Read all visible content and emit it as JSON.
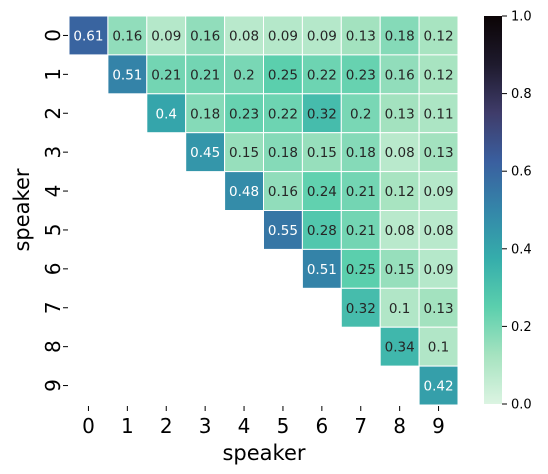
{
  "chart_data": {
    "type": "heatmap",
    "title": "",
    "xlabel": "speaker",
    "ylabel": "speaker",
    "x_categories": [
      "0",
      "1",
      "2",
      "3",
      "4",
      "5",
      "6",
      "7",
      "8",
      "9"
    ],
    "y_categories": [
      "0",
      "1",
      "2",
      "3",
      "4",
      "5",
      "6",
      "7",
      "8",
      "9"
    ],
    "values": [
      [
        0.61,
        0.16,
        0.09,
        0.16,
        0.08,
        0.09,
        0.09,
        0.13,
        0.18,
        0.12
      ],
      [
        null,
        0.51,
        0.21,
        0.21,
        0.2,
        0.25,
        0.22,
        0.23,
        0.16,
        0.12
      ],
      [
        null,
        null,
        0.4,
        0.18,
        0.23,
        0.22,
        0.32,
        0.2,
        0.13,
        0.11
      ],
      [
        null,
        null,
        null,
        0.45,
        0.15,
        0.18,
        0.15,
        0.18,
        0.08,
        0.13
      ],
      [
        null,
        null,
        null,
        null,
        0.48,
        0.16,
        0.24,
        0.21,
        0.12,
        0.09
      ],
      [
        null,
        null,
        null,
        null,
        null,
        0.55,
        0.28,
        0.21,
        0.08,
        0.08
      ],
      [
        null,
        null,
        null,
        null,
        null,
        null,
        0.51,
        0.25,
        0.15,
        0.09
      ],
      [
        null,
        null,
        null,
        null,
        null,
        null,
        null,
        0.32,
        0.1,
        0.13
      ],
      [
        null,
        null,
        null,
        null,
        null,
        null,
        null,
        null,
        0.34,
        0.1
      ],
      [
        null,
        null,
        null,
        null,
        null,
        null,
        null,
        null,
        null,
        0.42
      ]
    ],
    "value_labels": [
      [
        "0.61",
        "0.16",
        "0.09",
        "0.16",
        "0.08",
        "0.09",
        "0.09",
        "0.13",
        "0.18",
        "0.12"
      ],
      [
        null,
        "0.51",
        "0.21",
        "0.21",
        "0.2",
        "0.25",
        "0.22",
        "0.23",
        "0.16",
        "0.12"
      ],
      [
        null,
        null,
        "0.4",
        "0.18",
        "0.23",
        "0.22",
        "0.32",
        "0.2",
        "0.13",
        "0.11"
      ],
      [
        null,
        null,
        null,
        "0.45",
        "0.15",
        "0.18",
        "0.15",
        "0.18",
        "0.08",
        "0.13"
      ],
      [
        null,
        null,
        null,
        null,
        "0.48",
        "0.16",
        "0.24",
        "0.21",
        "0.12",
        "0.09"
      ],
      [
        null,
        null,
        null,
        null,
        null,
        "0.55",
        "0.28",
        "0.21",
        "0.08",
        "0.08"
      ],
      [
        null,
        null,
        null,
        null,
        null,
        null,
        "0.51",
        "0.25",
        "0.15",
        "0.09"
      ],
      [
        null,
        null,
        null,
        null,
        null,
        null,
        null,
        "0.32",
        "0.1",
        "0.13"
      ],
      [
        null,
        null,
        null,
        null,
        null,
        null,
        null,
        null,
        "0.34",
        "0.1"
      ],
      [
        null,
        null,
        null,
        null,
        null,
        null,
        null,
        null,
        null,
        "0.42"
      ]
    ],
    "colorbar": {
      "min": 0.0,
      "max": 1.0,
      "ticks": [
        0.0,
        0.2,
        0.4,
        0.6,
        0.8,
        1.0
      ],
      "tick_labels": [
        "0.0",
        "0.2",
        "0.4",
        "0.6",
        "0.8",
        "1.0"
      ],
      "colormap": "mako_r",
      "stops": [
        "#dcf4e2",
        "#a6e3c0",
        "#5bcfad",
        "#35adab",
        "#3486a9",
        "#3a5f9f",
        "#3f3c6a",
        "#1e1a2d",
        "#0b0405"
      ]
    },
    "grid": false,
    "legend": "colorbar-right"
  }
}
